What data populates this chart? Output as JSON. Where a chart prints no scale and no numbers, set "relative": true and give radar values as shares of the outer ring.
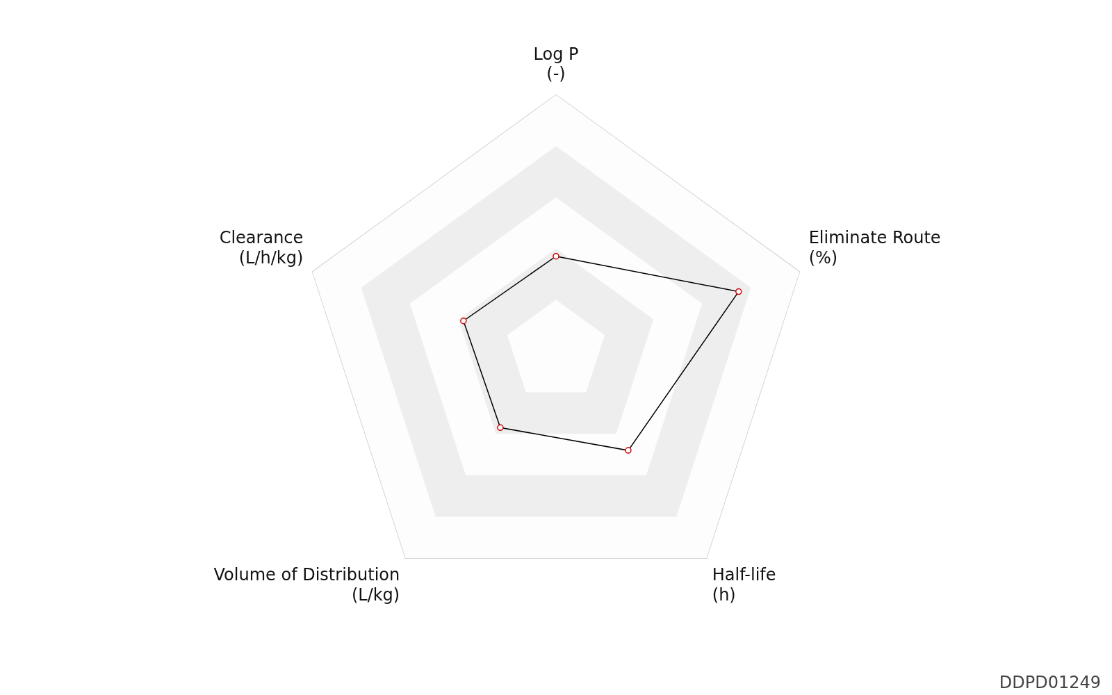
{
  "chart_data": {
    "type": "radar",
    "relative": true,
    "categories": [
      "Log P\n(-)",
      "Eliminate Route\n(%)",
      "Half-life\n(h)",
      "Volume of Distribution\n(L/kg)",
      "Clearance\n(L/h/kg)"
    ],
    "series": [
      {
        "color": "#000000",
        "values": [
          0.37,
          0.75,
          0.48,
          0.37,
          0.38
        ]
      }
    ],
    "marker": "circle",
    "legend": false,
    "annotations": [
      "DDPD01249"
    ]
  }
}
